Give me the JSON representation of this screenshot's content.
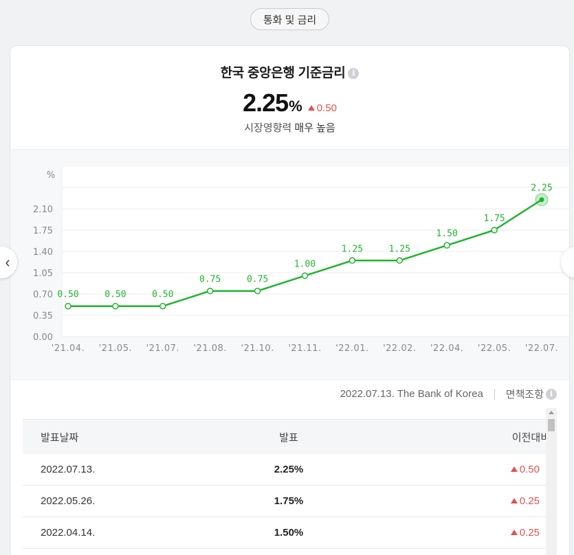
{
  "tab": {
    "label": "통화 및 금리"
  },
  "header": {
    "title": "한국 중앙은행 기준금리",
    "value": "2.25",
    "unit": "%",
    "change": "0.50",
    "impact_label": "시장영향력",
    "impact_value": "매우 높음"
  },
  "colors": {
    "line": "#1db52b",
    "up": "#e5504d"
  },
  "chart_data": {
    "type": "line",
    "ylabel": "%",
    "yticks": [
      "0.00",
      "0.35",
      "0.70",
      "1.05",
      "1.40",
      "1.75",
      "2.10"
    ],
    "ylim": [
      0,
      2.45
    ],
    "categories": [
      "'21.04.",
      "'21.05.",
      "'21.07.",
      "'21.08.",
      "'21.10.",
      "'21.11.",
      "'22.01.",
      "'22.02.",
      "'22.04.",
      "'22.05.",
      "'22.07."
    ],
    "values": [
      0.5,
      0.5,
      0.5,
      0.75,
      0.75,
      1.0,
      1.25,
      1.25,
      1.5,
      1.75,
      2.25
    ],
    "value_labels": [
      "0.50",
      "0.50",
      "0.50",
      "0.75",
      "0.75",
      "1.00",
      "1.25",
      "1.25",
      "1.50",
      "1.75",
      "2.25"
    ],
    "grid": true,
    "highlight_last": true
  },
  "source": {
    "text": "2022.07.13. The Bank of Korea",
    "disclaimer": "면책조항"
  },
  "table": {
    "headers": [
      "발표날짜",
      "발표",
      "이전대비"
    ],
    "rows": [
      {
        "date": "2022.07.13.",
        "value": "2.25%",
        "change": "0.50"
      },
      {
        "date": "2022.05.26.",
        "value": "1.75%",
        "change": "0.25"
      },
      {
        "date": "2022.04.14.",
        "value": "1.50%",
        "change": "0.25"
      }
    ]
  },
  "icons": [
    "info-icon",
    "chevron-left-icon",
    "chevron-right-icon",
    "triangle-up-icon"
  ]
}
